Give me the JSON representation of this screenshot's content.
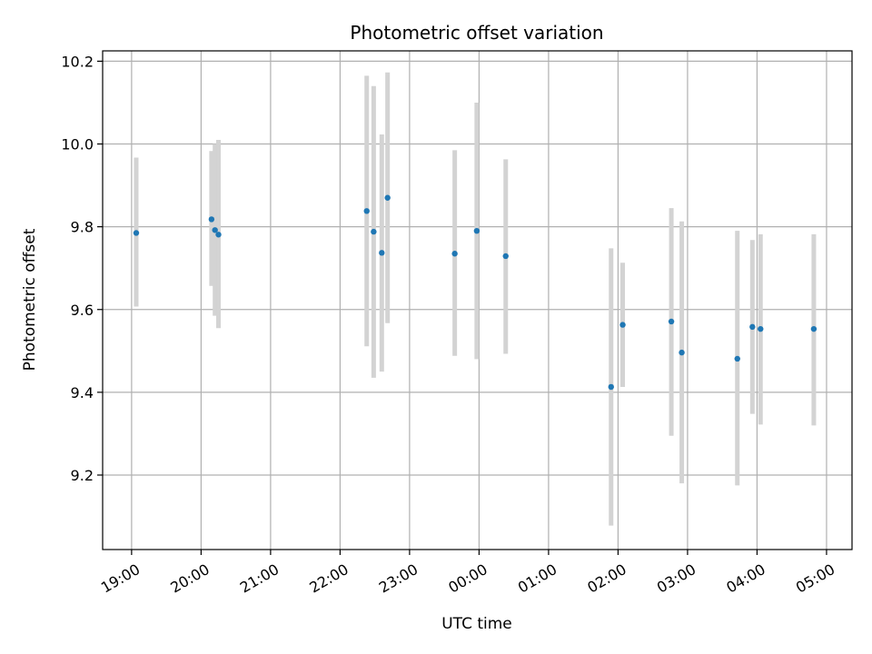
{
  "chart_data": {
    "type": "scatter",
    "title": "Photometric offset variation",
    "xlabel": "UTC time",
    "ylabel": "Photometric offset",
    "x_ticks": [
      "19:00",
      "20:00",
      "21:00",
      "22:00",
      "23:00",
      "00:00",
      "01:00",
      "02:00",
      "03:00",
      "04:00",
      "05:00"
    ],
    "y_ticks": [
      "9.2",
      "9.4",
      "9.6",
      "9.8",
      "10.0",
      "10.2"
    ],
    "xlim": [
      "18:35",
      "05:22"
    ],
    "ylim": [
      9.02,
      10.225
    ],
    "grid": true,
    "colors": {
      "point": "#1f77b4",
      "errorbar": "#d3d3d3",
      "grid": "#b0b0b0"
    },
    "points": [
      {
        "x": "19:04",
        "y": 9.785,
        "err_low": 9.607,
        "err_high": 9.967
      },
      {
        "x": "20:09",
        "y": 9.818,
        "err_low": 9.657,
        "err_high": 9.983
      },
      {
        "x": "20:12",
        "y": 9.792,
        "err_low": 9.585,
        "err_high": 10.0
      },
      {
        "x": "20:15",
        "y": 9.781,
        "err_low": 9.555,
        "err_high": 10.01
      },
      {
        "x": "22:23",
        "y": 9.838,
        "err_low": 9.511,
        "err_high": 10.165
      },
      {
        "x": "22:29",
        "y": 9.788,
        "err_low": 9.435,
        "err_high": 10.14
      },
      {
        "x": "22:36",
        "y": 9.737,
        "err_low": 9.45,
        "err_high": 10.023
      },
      {
        "x": "22:41",
        "y": 9.87,
        "err_low": 9.567,
        "err_high": 10.173
      },
      {
        "x": "23:39",
        "y": 9.735,
        "err_low": 9.488,
        "err_high": 9.985
      },
      {
        "x": "23:58",
        "y": 9.79,
        "err_low": 9.48,
        "err_high": 10.1
      },
      {
        "x": "00:23",
        "y": 9.729,
        "err_low": 9.493,
        "err_high": 9.963
      },
      {
        "x": "01:54",
        "y": 9.413,
        "err_low": 9.078,
        "err_high": 9.748
      },
      {
        "x": "02:04",
        "y": 9.563,
        "err_low": 9.413,
        "err_high": 9.713
      },
      {
        "x": "02:46",
        "y": 9.571,
        "err_low": 9.295,
        "err_high": 9.845
      },
      {
        "x": "02:55",
        "y": 9.496,
        "err_low": 9.18,
        "err_high": 9.813
      },
      {
        "x": "03:43",
        "y": 9.481,
        "err_low": 9.175,
        "err_high": 9.79
      },
      {
        "x": "03:56",
        "y": 9.558,
        "err_low": 9.348,
        "err_high": 9.768
      },
      {
        "x": "04:03",
        "y": 9.553,
        "err_low": 9.322,
        "err_high": 9.782
      },
      {
        "x": "04:49",
        "y": 9.553,
        "err_low": 9.32,
        "err_high": 9.782
      }
    ]
  }
}
